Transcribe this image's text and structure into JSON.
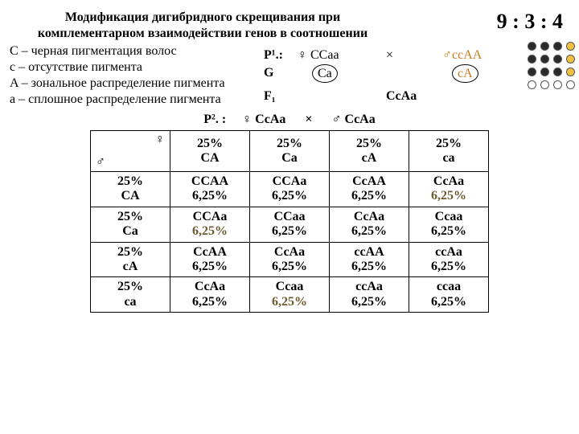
{
  "title_l1": "Модификация дигибридного скрещивания при",
  "title_l2": "комплементарном взаимодействии генов в соотношении",
  "ratio": "9 : 3 : 4",
  "legend": {
    "C": "C – черная пигментация волос",
    "c": "c – отсутствие пигмента",
    "A": "A – зональное распределение пигмента",
    "a": "a – сплошное распределение пигмента"
  },
  "p1": {
    "label": "P¹.:",
    "female": "♀ CCaa",
    "cross": "×",
    "male": "♂ccAA",
    "G": "G",
    "g_f": "Ca",
    "g_m": "cA",
    "F1": "F₁",
    "f1_val": "CcAa"
  },
  "p2": {
    "label": "P². :",
    "female": "♀ CcAa",
    "cross": "×",
    "male": "♂ CcAa"
  },
  "table": {
    "corner_f": "♀",
    "corner_m": "♂",
    "col_headers": [
      "25%\nCA",
      "25%\nCa",
      "25%\ncA",
      "25%\nca"
    ],
    "row_headers": [
      "25%\nCA",
      "25%\nCa",
      "25%\ncA",
      "25%\nca"
    ],
    "cells": [
      [
        "CCAA\n6,25%",
        "CCAa\n6,25%",
        "CcAA\n6,25%",
        "CcAa\n6,25%"
      ],
      [
        "CCAa\n6,25%",
        "CCaa\n6,25%",
        "CcAa\n6,25%",
        "Ccaa\n6,25%"
      ],
      [
        "CcAA\n6,25%",
        "CcAa\n6,25%",
        "ccAA\n6,25%",
        "ccAa\n6,25%"
      ],
      [
        "CcAa\n6,25%",
        "Ccaa\n6,25%",
        "ccAa\n6,25%",
        "ccaa\n6,25%"
      ]
    ],
    "highlight": [
      [
        0,
        3
      ],
      [
        1,
        0
      ],
      [
        3,
        1
      ]
    ]
  },
  "dots": [
    "blk",
    "blk",
    "blk",
    "ylw",
    "blk",
    "blk",
    "blk",
    "ylw",
    "blk",
    "blk",
    "blk",
    "ylw",
    "wht",
    "wht",
    "wht",
    "wht"
  ]
}
